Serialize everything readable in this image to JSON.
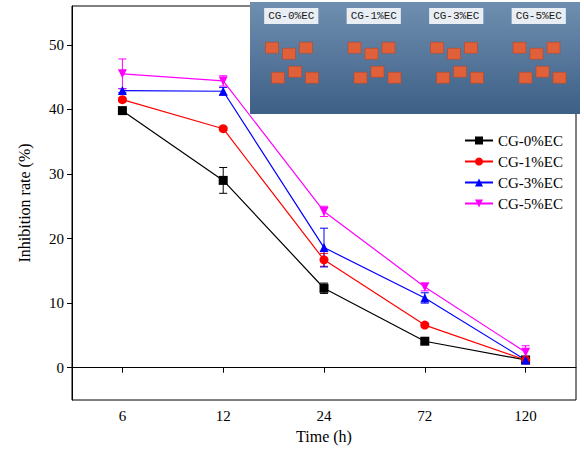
{
  "chart_data": {
    "type": "line",
    "x_label": "Time (h)",
    "y_label": "Inhibition rate (%)",
    "categories": [
      "6",
      "12",
      "24",
      "72",
      "120"
    ],
    "ylim": [
      -5,
      56
    ],
    "yticks": [
      0,
      10,
      20,
      30,
      40,
      50
    ],
    "grid": false,
    "legend": "upper right",
    "annotations": [
      "CG-0%EC",
      "CG-1%EC",
      "CG-3%EC",
      "CG-5%EC"
    ],
    "series": [
      {
        "name": "CG-0%EC",
        "color": "#000000",
        "marker": "square",
        "values": [
          39.8,
          29.0,
          12.3,
          4.1,
          1.2
        ],
        "errors": [
          0.3,
          2.0,
          0.8,
          0.3,
          0.3
        ]
      },
      {
        "name": "CG-1%EC",
        "color": "#ff0000",
        "marker": "circle",
        "values": [
          41.5,
          37.0,
          16.7,
          6.6,
          1.2
        ],
        "errors": [
          0.3,
          0.3,
          1.0,
          0.3,
          0.3
        ]
      },
      {
        "name": "CG-3%EC",
        "color": "#0000ff",
        "marker": "triangle-up",
        "values": [
          42.9,
          42.8,
          18.6,
          10.8,
          1.2
        ],
        "errors": [
          0.3,
          0.6,
          3.0,
          0.8,
          0.3
        ]
      },
      {
        "name": "CG-5%EC",
        "color": "#ff00ff",
        "marker": "triangle-down",
        "values": [
          45.5,
          44.4,
          24.2,
          12.5,
          2.4
        ],
        "errors": [
          2.3,
          0.8,
          0.8,
          0.6,
          1.0
        ]
      }
    ]
  }
}
